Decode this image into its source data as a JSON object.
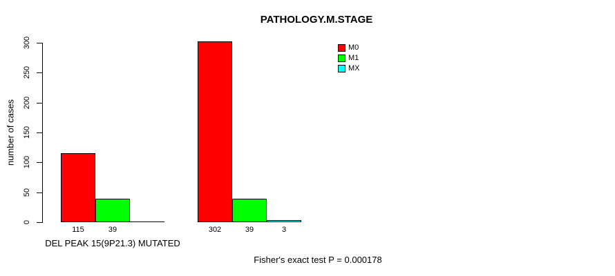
{
  "chart_data": {
    "type": "bar",
    "title": "PATHOLOGY.M.STAGE",
    "ylabel": "number of cases",
    "xlabel": "",
    "ylim": [
      0,
      300
    ],
    "yticks": [
      0,
      50,
      100,
      150,
      200,
      250,
      300
    ],
    "grid": false,
    "legend_position": "top-right-inside",
    "legend": [
      {
        "label": "M0",
        "color": "#FF0000"
      },
      {
        "label": "M1",
        "color": "#00FF00"
      },
      {
        "label": "MX",
        "color": "#00FFFF"
      }
    ],
    "series_colors": [
      "#FF0000",
      "#00FF00",
      "#00FFFF"
    ],
    "categories": [
      "M0",
      "M1",
      "MX"
    ],
    "groups": [
      {
        "label": "DEL PEAK 15(9P21.3) MUTATED",
        "values": [
          115,
          39,
          0
        ],
        "bar_labels": [
          "115",
          "39",
          ""
        ]
      },
      {
        "label": "",
        "values": [
          302,
          39,
          3
        ],
        "bar_labels": [
          "302",
          "39",
          "3"
        ]
      }
    ],
    "annotation": "Fisher's exact test P = 0.000178"
  }
}
